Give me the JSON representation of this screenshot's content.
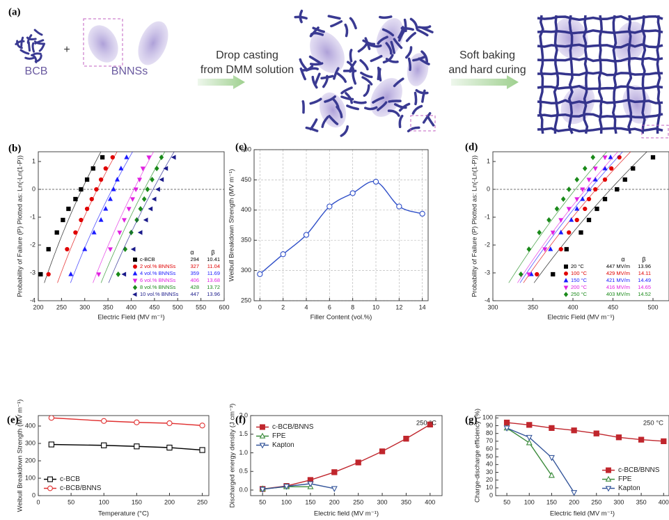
{
  "schematic": {
    "label": "(a)",
    "plus": "+",
    "bcb": "BCB",
    "bnns": "BNNSs",
    "step1": [
      "Drop casting",
      "from DMM solution"
    ],
    "step2": [
      "Soft baking",
      "and hard curing"
    ]
  },
  "chart_data": [
    {
      "type": "scatter",
      "label": "(b)",
      "xlabel": "Electric Field (MV m⁻¹)",
      "ylabel": "Probability of Failure (P) Plotted as: Ln(-Ln(1-P))",
      "xlim": [
        200,
        600
      ],
      "ylim": [
        -4,
        1.35
      ],
      "xticks": [
        200,
        250,
        300,
        350,
        400,
        450,
        500,
        550,
        600
      ],
      "yticks": [
        -4,
        -3,
        -2,
        -1,
        0,
        1
      ],
      "hline": 0,
      "legend": "bottom-right",
      "legend_columns": [
        "α",
        "β"
      ],
      "series": [
        {
          "name": "c-BCB",
          "color": "#000000",
          "marker": "square",
          "filled": true,
          "alpha": 294,
          "beta": 10.41,
          "x": [
            205,
            222,
            240,
            253,
            265,
            280,
            292,
            305,
            318,
            338
          ],
          "values": [
            -3.05,
            -2.15,
            -1.55,
            -1.1,
            -0.7,
            -0.35,
            0,
            0.35,
            0.75,
            1.15
          ]
        },
        {
          "name": "2 vol.% BNNSs",
          "color": "#e00000",
          "marker": "circle",
          "filled": true,
          "alpha": 327,
          "beta": 11.04,
          "x": [
            222,
            262,
            280,
            292,
            305,
            315,
            325,
            335,
            345,
            360
          ],
          "values": [
            -3.05,
            -2.15,
            -1.55,
            -1.1,
            -0.7,
            -0.35,
            0,
            0.35,
            0.75,
            1.15
          ]
        },
        {
          "name": "4 vol.% BNNSs",
          "color": "#1a1aff",
          "marker": "triangle-up",
          "filled": true,
          "alpha": 359,
          "beta": 11.69,
          "x": [
            270,
            300,
            320,
            335,
            345,
            355,
            362,
            370,
            378,
            390
          ],
          "values": [
            -3.05,
            -2.15,
            -1.55,
            -1.1,
            -0.7,
            -0.35,
            0,
            0.35,
            0.75,
            1.15
          ]
        },
        {
          "name": "6 vol.% BNNSs",
          "color": "#e020e0",
          "marker": "triangle-down",
          "filled": true,
          "alpha": 406,
          "beta": 13.68,
          "x": [
            330,
            355,
            375,
            385,
            395,
            403,
            410,
            418,
            425,
            438
          ],
          "values": [
            -3.05,
            -2.15,
            -1.55,
            -1.1,
            -0.7,
            -0.35,
            0,
            0.35,
            0.75,
            1.15
          ]
        },
        {
          "name": "8 vol.% BNNSs",
          "color": "#1a8a1a",
          "marker": "diamond",
          "filled": true,
          "alpha": 428,
          "beta": 13.72,
          "x": [
            372,
            387,
            400,
            412,
            420,
            428,
            435,
            445,
            455,
            465
          ],
          "values": [
            -3.05,
            -2.15,
            -1.55,
            -1.1,
            -0.7,
            -0.35,
            0,
            0.35,
            0.75,
            1.15
          ]
        },
        {
          "name": "10 vol.% BNNSs",
          "color": "#1a1a8a",
          "marker": "triangle-left",
          "filled": true,
          "alpha": 447,
          "beta": 13.96,
          "x": [
            385,
            405,
            420,
            432,
            442,
            450,
            458,
            466,
            475,
            492
          ],
          "values": [
            -3.05,
            -2.15,
            -1.55,
            -1.1,
            -0.7,
            -0.35,
            0,
            0.35,
            0.75,
            1.15
          ]
        }
      ]
    },
    {
      "type": "line",
      "label": "(c)",
      "xlabel": "Filler Content (vol.%)",
      "ylabel": "Weibull Breakdown Strength (MV m⁻¹)",
      "xlim": [
        -0.5,
        14.5
      ],
      "ylim": [
        250,
        500
      ],
      "xticks": [
        0,
        2,
        4,
        6,
        8,
        10,
        12,
        14
      ],
      "yticks": [
        250,
        300,
        350,
        400,
        450,
        500
      ],
      "grid": true,
      "smooth": true,
      "series": [
        {
          "color": "#2f4fc8",
          "marker": "circle",
          "filled": false,
          "x": [
            0,
            2,
            4,
            6,
            8,
            10,
            12,
            14
          ],
          "values": [
            294,
            327,
            359,
            406,
            428,
            447,
            406,
            394
          ]
        }
      ]
    },
    {
      "type": "scatter",
      "label": "(d)",
      "xlabel": "Electric Field (MV m⁻¹)",
      "ylabel": "Probability of Failure (P) Plotted as: Ln(-Ln(1-P))",
      "xlim": [
        300,
        520
      ],
      "ylim": [
        -4,
        1.35
      ],
      "xticks": [
        300,
        350,
        400,
        450,
        500
      ],
      "yticks": [
        -4,
        -3,
        -2,
        -1,
        0,
        1
      ],
      "hline": 0,
      "legend": "bottom-right",
      "legend_columns": [
        "α",
        "β"
      ],
      "series": [
        {
          "name": "20 °C",
          "color": "#000000",
          "marker": "square",
          "filled": true,
          "alpha": 447,
          "alpha_label": "447 MV/m",
          "beta": 13.96,
          "x": [
            375,
            392,
            410,
            420,
            430,
            440,
            455,
            465,
            475,
            500
          ],
          "values": [
            -3.05,
            -2.15,
            -1.55,
            -1.1,
            -0.7,
            -0.35,
            0,
            0.35,
            0.75,
            1.15
          ]
        },
        {
          "name": "100 °C",
          "color": "#e00000",
          "marker": "circle",
          "filled": true,
          "alpha": 429,
          "alpha_label": "429 MV/m",
          "beta": 14.11,
          "x": [
            355,
            385,
            395,
            405,
            415,
            420,
            428,
            440,
            448,
            458
          ],
          "values": [
            -3.05,
            -2.15,
            -1.55,
            -1.1,
            -0.7,
            -0.35,
            0,
            0.35,
            0.75,
            1.15
          ]
        },
        {
          "name": "150 °C",
          "color": "#1a1aff",
          "marker": "triangle-up",
          "filled": true,
          "alpha": 421,
          "alpha_label": "421 MV/m",
          "beta": 14.49,
          "x": [
            348,
            372,
            385,
            398,
            405,
            412,
            420,
            428,
            440,
            447
          ],
          "values": [
            -3.05,
            -2.15,
            -1.55,
            -1.1,
            -0.7,
            -0.35,
            0,
            0.35,
            0.75,
            1.15
          ]
        },
        {
          "name": "200 °C",
          "color": "#e020e0",
          "marker": "triangle-down",
          "filled": true,
          "alpha": 416,
          "alpha_label": "416 MV/m",
          "beta": 14.65,
          "x": [
            345,
            365,
            375,
            385,
            395,
            405,
            412,
            420,
            428,
            440
          ],
          "values": [
            -3.05,
            -2.15,
            -1.55,
            -1.1,
            -0.7,
            -0.35,
            0,
            0.35,
            0.75,
            1.15
          ]
        },
        {
          "name": "250 °C",
          "color": "#1a8a1a",
          "marker": "diamond",
          "filled": true,
          "alpha": 403,
          "alpha_label": "403 MV/m",
          "beta": 14.52,
          "x": [
            335,
            345,
            358,
            370,
            380,
            388,
            395,
            405,
            415,
            425
          ],
          "values": [
            -3.05,
            -2.15,
            -1.55,
            -1.1,
            -0.7,
            -0.35,
            0,
            0.35,
            0.75,
            1.15
          ]
        }
      ]
    },
    {
      "type": "line",
      "label": "(e)",
      "xlabel": "Temperature (°C)",
      "ylabel": "Weibull Breakdown Strength (MV m⁻¹)",
      "xlim": [
        0,
        260
      ],
      "ylim": [
        0,
        460
      ],
      "xticks": [
        0,
        50,
        100,
        150,
        200,
        250
      ],
      "yticks": [
        0,
        100,
        200,
        300,
        400
      ],
      "legend": "bottom-left",
      "series": [
        {
          "name": "c-BCB",
          "color": "#000000",
          "marker": "square",
          "filled": false,
          "x": [
            20,
            100,
            150,
            200,
            250
          ],
          "values": [
            294,
            289,
            283,
            276,
            262
          ]
        },
        {
          "name": "c-BCB/BNNS",
          "color": "#e03030",
          "marker": "circle",
          "filled": false,
          "x": [
            20,
            100,
            150,
            200,
            250
          ],
          "values": [
            447,
            429,
            421,
            416,
            403
          ]
        }
      ]
    },
    {
      "type": "line",
      "label": "(f)",
      "xlabel": "Electric field (MV m⁻¹)",
      "ylabel": "Discharged energy density (J cm⁻³)",
      "xlim": [
        25,
        425
      ],
      "ylim": [
        -0.15,
        2.0
      ],
      "xticks": [
        50,
        100,
        150,
        200,
        250,
        300,
        350,
        400
      ],
      "yticks": [
        {
          "value": 0,
          "label": "0.0"
        },
        0.5,
        {
          "value": 1,
          "label": "1.0"
        },
        1.5,
        {
          "value": 2,
          "label": "2.0"
        }
      ],
      "legend": "top-left",
      "annotation": "250 °C",
      "series": [
        {
          "name": "c-BCB/BNNS",
          "color": "#c0262d",
          "marker": "square",
          "filled": true,
          "x": [
            50,
            100,
            150,
            200,
            250,
            300,
            350,
            400
          ],
          "values": [
            0.03,
            0.11,
            0.27,
            0.48,
            0.74,
            1.04,
            1.38,
            1.76
          ]
        },
        {
          "name": "FPE",
          "color": "#3a8a3a",
          "marker": "triangle-up",
          "filled": false,
          "x": [
            50,
            100,
            150
          ],
          "values": [
            0.03,
            0.09,
            0.09
          ]
        },
        {
          "name": "Kapton",
          "color": "#34559a",
          "marker": "triangle-down",
          "filled": false,
          "x": [
            50,
            100,
            150,
            200
          ],
          "values": [
            0.02,
            0.1,
            0.17,
            0.04
          ]
        }
      ]
    },
    {
      "type": "line",
      "label": "(g)",
      "xlabel": "Electric field (MV m⁻¹)",
      "ylabel": "Charge-discharge efficiency (%)",
      "xlim": [
        25,
        412
      ],
      "ylim": [
        0,
        103
      ],
      "xticks": [
        50,
        100,
        150,
        200,
        250,
        300,
        350,
        400
      ],
      "yticks": [
        0,
        10,
        20,
        30,
        40,
        50,
        60,
        70,
        80,
        90,
        100
      ],
      "legend": "bottom-right",
      "annotation": "250 °C",
      "series": [
        {
          "name": "c-BCB/BNNS",
          "color": "#c0262d",
          "marker": "square",
          "filled": true,
          "x": [
            50,
            100,
            150,
            200,
            250,
            300,
            350,
            400
          ],
          "values": [
            94,
            91,
            87,
            84,
            80,
            75,
            72,
            70
          ]
        },
        {
          "name": "FPE",
          "color": "#3a8a3a",
          "marker": "triangle-up",
          "filled": false,
          "x": [
            50,
            100,
            150
          ],
          "values": [
            87,
            68,
            26
          ]
        },
        {
          "name": "Kapton",
          "color": "#34559a",
          "marker": "triangle-down",
          "filled": false,
          "x": [
            50,
            100,
            150,
            200
          ],
          "values": [
            87,
            75,
            49,
            4
          ]
        }
      ]
    }
  ]
}
